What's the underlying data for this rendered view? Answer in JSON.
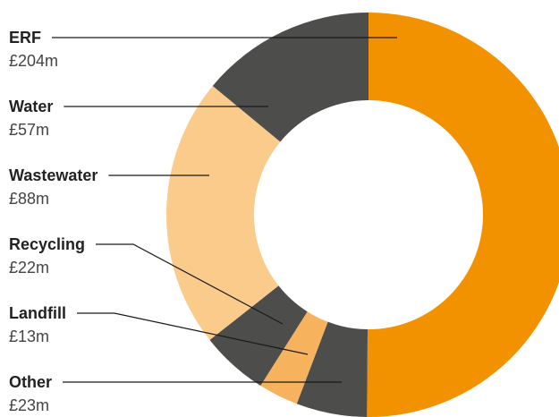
{
  "chart_data": {
    "type": "pie",
    "donut": true,
    "unit": "£m",
    "categories": [
      "ERF",
      "Water",
      "Wastewater",
      "Recycling",
      "Landfill",
      "Other"
    ],
    "values": [
      204,
      57,
      88,
      22,
      13,
      23
    ],
    "value_labels": [
      "£204m",
      "£57m",
      "£88m",
      "£22m",
      "£13m",
      "£23m"
    ],
    "colors": [
      "#F39200",
      "#4D4D4B",
      "#FBCB8C",
      "#4D4D4B",
      "#F7B25E",
      "#4D4D4B"
    ],
    "ordering": "clockwise from top: ERF, Other, Landfill, Recycling, Wastewater, Water",
    "legend": "left, with leader lines"
  }
}
